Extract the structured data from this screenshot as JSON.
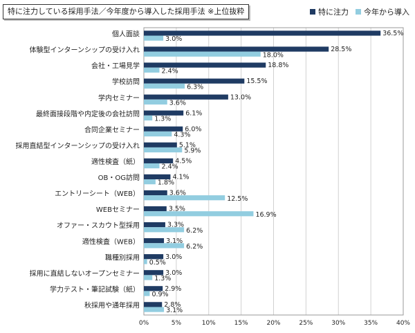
{
  "title": "特に注力している採用手法／今年度から導入した採用手法 ※上位抜粋",
  "colors": {
    "series1": "#1f3b63",
    "series2": "#92cde0"
  },
  "chart_data": {
    "type": "bar",
    "orientation": "horizontal",
    "categories": [
      "個人面談",
      "体験型インターンシップの受け入れ",
      "会社・工場見学",
      "学校訪問",
      "学内セミナー",
      "最終面接段階や内定後の会社訪問",
      "合同企業セミナー",
      "採用直結型インターンシップの受け入れ",
      "適性検査（紙）",
      "OB・OG訪問",
      "エントリーシート（WEB）",
      "WEBセミナー",
      "オファー・スカウト型採用",
      "適性検査（WEB）",
      "職種別採用",
      "採用に直結しないオープンセミナー",
      "学力テスト・筆記試験（紙）",
      "秋採用や通年採用"
    ],
    "series": [
      {
        "name": "特に注力",
        "values": [
          36.5,
          28.5,
          18.8,
          15.5,
          13.0,
          6.1,
          6.0,
          5.1,
          4.5,
          4.1,
          3.6,
          3.5,
          3.3,
          3.1,
          3.0,
          3.0,
          2.9,
          2.8
        ],
        "labels": [
          "36.5%",
          "28.5%",
          "18.8%",
          "15.5%",
          "13.0%",
          "6.1%",
          "6.0%",
          "5.1%",
          "4.5%",
          "4.1%",
          "3.6%",
          "3.5%",
          "3.3%",
          "3.1%",
          "3.0%",
          "3.0%",
          "2.9%",
          "2.8%"
        ]
      },
      {
        "name": "今年から導入",
        "values": [
          3.0,
          18.0,
          2.4,
          6.3,
          3.6,
          1.3,
          4.3,
          5.9,
          2.4,
          1.8,
          12.5,
          16.9,
          6.2,
          6.2,
          0.5,
          1.3,
          0.9,
          3.1
        ],
        "labels": [
          "3.0%",
          "18.0%",
          "2.4%",
          "6.3%",
          "3.6%",
          "1.3%",
          "4.3%",
          "5.9%",
          "2.4%",
          "1.8%",
          "12.5%",
          "16.9%",
          "6.2%",
          "6.2%",
          "0.5%",
          "1.3%",
          "0.9%",
          "3.1%"
        ]
      }
    ],
    "xlim": [
      0,
      40
    ],
    "xticks": [
      "0%",
      "5%",
      "10%",
      "15%",
      "20%",
      "25%",
      "30%",
      "35%",
      "40%"
    ],
    "grid": true,
    "legend": "top-right"
  }
}
